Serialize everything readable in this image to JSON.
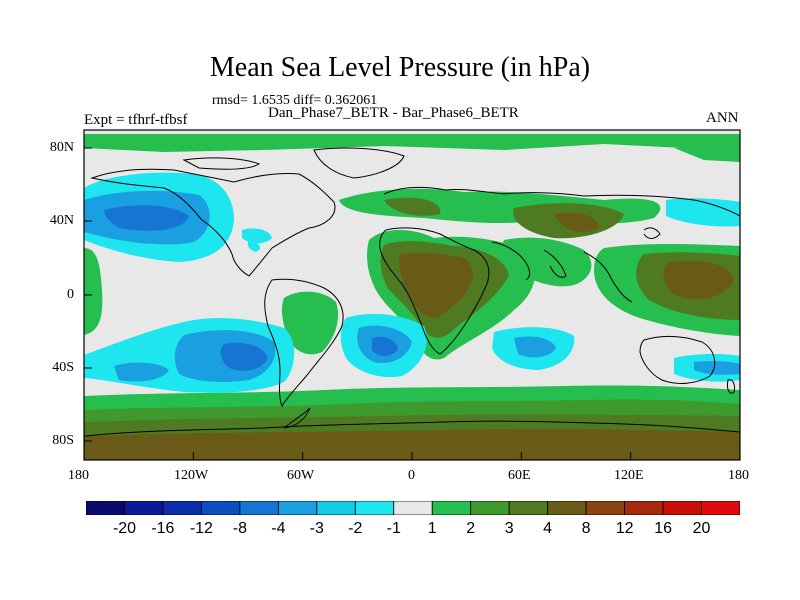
{
  "title": "Mean Sea Level Pressure (in hPa)",
  "stats": "rmsd= 1.6535 diff= 0.362061",
  "experiment": "Expt = tfhrf-tfbsf",
  "subtitle": "Dan_Phase7_BETR - Bar_Phase6_BETR",
  "season": "ANN",
  "lat_ticks": [
    "80N",
    "40N",
    "0",
    "40S",
    "80S"
  ],
  "lon_ticks": [
    "180",
    "120W",
    "60W",
    "0",
    "60E",
    "120E",
    "180"
  ],
  "colorbar": {
    "labels": [
      "-20",
      "-16",
      "-12",
      "-8",
      "-4",
      "-3",
      "-2",
      "-1",
      "1",
      "2",
      "3",
      "4",
      "8",
      "12",
      "16",
      "20"
    ],
    "colors": [
      "#0a0a6e",
      "#0b1a96",
      "#0b2eab",
      "#0a4ec0",
      "#1675d2",
      "#1aa0e0",
      "#14cce6",
      "#1ee6ee",
      "#e8e8e8",
      "#26be4e",
      "#3f9a2e",
      "#4e7a22",
      "#6a5a18",
      "#8a4412",
      "#a8280e",
      "#c80e06",
      "#e00a0a"
    ]
  },
  "colors": {
    "land_outline": "#000000",
    "background": "#e8e8e8",
    "low_light": "#1ee6ee",
    "low_mid": "#14cce6",
    "low_deep": "#1aa0e0",
    "low_core": "#1675d2",
    "high_green": "#26be4e",
    "high_dark_green": "#3f9a2e",
    "high_olive": "#4e7a22",
    "high_brown": "#6a5a18"
  }
}
